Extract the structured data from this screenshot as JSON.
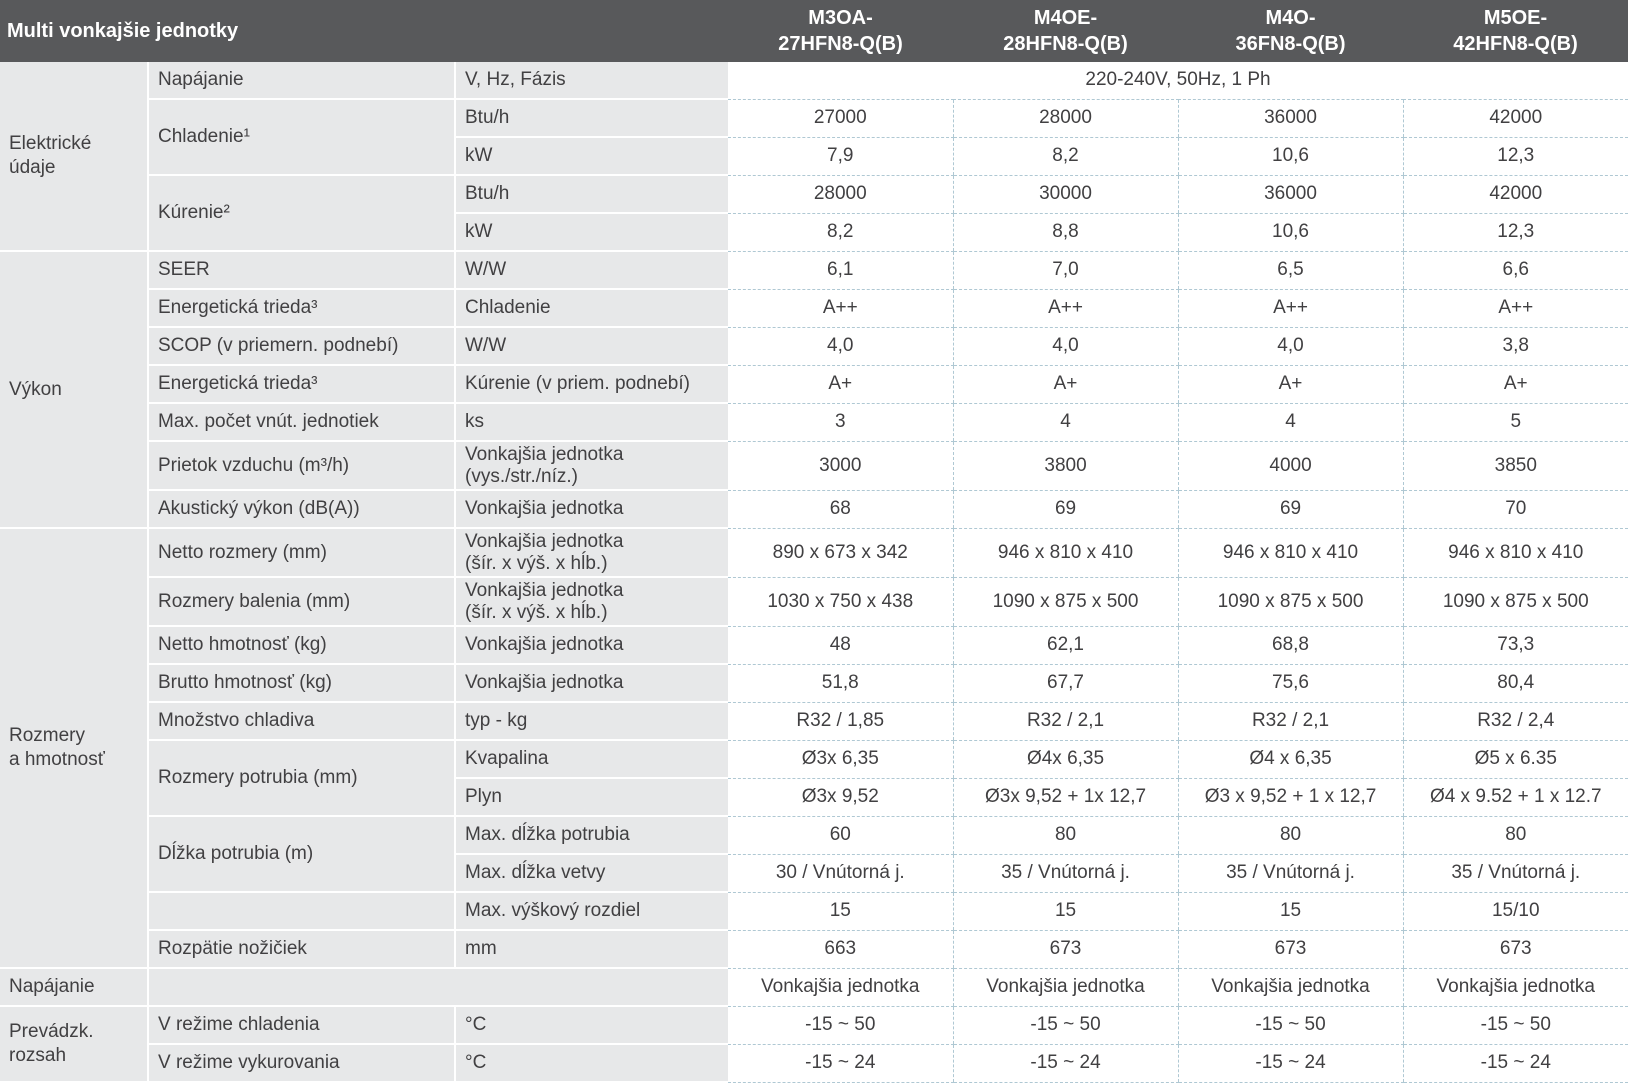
{
  "title": "Multi vonkajšie jednotky",
  "models": [
    "M3OA-\n27HFN8-Q(B)",
    "M4OE-\n28HFN8-Q(B)",
    "M4O-\n36FN8-Q(B)",
    "M5OE-\n42HFN8-Q(B)"
  ],
  "rows": [
    {
      "category": {
        "text": "Elektrické\núdaje",
        "rowspan": 5
      },
      "label": {
        "text": "Napájanie",
        "rowspan": 1
      },
      "unit": "V, Hz, Fázis",
      "span_value": "220-240V, 50Hz, 1 Ph"
    },
    {
      "label": {
        "text": "Chladenie¹",
        "rowspan": 2
      },
      "unit": "Btu/h",
      "values": [
        "27000",
        "28000",
        "36000",
        "42000"
      ]
    },
    {
      "unit": "kW",
      "values": [
        "7,9",
        "8,2",
        "10,6",
        "12,3"
      ]
    },
    {
      "label": {
        "text": "Kúrenie²",
        "rowspan": 2
      },
      "unit": "Btu/h",
      "values": [
        "28000",
        "30000",
        "36000",
        "42000"
      ]
    },
    {
      "unit": "kW",
      "values": [
        "8,2",
        "8,8",
        "10,6",
        "12,3"
      ]
    },
    {
      "category": {
        "text": "Výkon",
        "rowspan": 7
      },
      "label": {
        "text": "SEER",
        "rowspan": 1
      },
      "unit": "W/W",
      "values": [
        "6,1",
        "7,0",
        "6,5",
        "6,6"
      ]
    },
    {
      "label": {
        "text": "Energetická trieda³",
        "rowspan": 1
      },
      "unit": "Chladenie",
      "values": [
        "A++",
        "A++",
        "A++",
        "A++"
      ]
    },
    {
      "label": {
        "text": "SCOP (v priemern. podnebí)",
        "rowspan": 1
      },
      "unit": "W/W",
      "values": [
        "4,0",
        "4,0",
        "4,0",
        "3,8"
      ]
    },
    {
      "label": {
        "text": "Energetická trieda³",
        "rowspan": 1
      },
      "unit": "Kúrenie (v priem. podnebí)",
      "values": [
        "A+",
        "A+",
        "A+",
        "A+"
      ]
    },
    {
      "label": {
        "text": "Max. počet vnút. jednotiek",
        "rowspan": 1
      },
      "unit": "ks",
      "values": [
        "3",
        "4",
        "4",
        "5"
      ]
    },
    {
      "label": {
        "text": "Prietok vzduchu (m³/h)",
        "rowspan": 1
      },
      "unit": "Vonkajšia jednotka\n(vys./str./níz.)",
      "values": [
        "3000",
        "3800",
        "4000",
        "3850"
      ],
      "tall": true
    },
    {
      "label": {
        "text": "Akustický výkon (dB(A))",
        "rowspan": 1
      },
      "unit": "Vonkajšia jednotka",
      "values": [
        "68",
        "69",
        "69",
        "70"
      ]
    },
    {
      "category": {
        "text": "Rozmery\na hmotnosť",
        "rowspan": 11
      },
      "label": {
        "text": "Netto rozmery (mm)",
        "rowspan": 1
      },
      "unit": "Vonkajšia jednotka\n(šír. x výš. x hĺb.)",
      "values": [
        "890 x 673 x 342",
        "946 x 810 x 410",
        "946 x 810 x 410",
        "946 x 810 x 410"
      ],
      "tall": true
    },
    {
      "label": {
        "text": "Rozmery balenia (mm)",
        "rowspan": 1
      },
      "unit": "Vonkajšia jednotka\n(šír. x výš. x hĺb.)",
      "values": [
        "1030 x 750 x 438",
        "1090 x 875 x 500",
        "1090 x 875 x 500",
        "1090 x 875 x 500"
      ],
      "tall": true
    },
    {
      "label": {
        "text": "Netto hmotnosť (kg)",
        "rowspan": 1
      },
      "unit": "Vonkajšia jednotka",
      "values": [
        "48",
        "62,1",
        "68,8",
        "73,3"
      ]
    },
    {
      "label": {
        "text": "Brutto hmotnosť (kg)",
        "rowspan": 1
      },
      "unit": "Vonkajšia jednotka",
      "values": [
        "51,8",
        "67,7",
        "75,6",
        "80,4"
      ]
    },
    {
      "label": {
        "text": "Množstvo chladiva",
        "rowspan": 1
      },
      "unit": "typ - kg",
      "values": [
        "R32 / 1,85",
        "R32 / 2,1",
        "R32 / 2,1",
        "R32 / 2,4"
      ]
    },
    {
      "label": {
        "text": "Rozmery potrubia (mm)",
        "rowspan": 2
      },
      "unit": "Kvapalina",
      "values": [
        "Ø3x 6,35",
        "Ø4x 6,35",
        "Ø4 x 6,35",
        "Ø5 x 6.35"
      ]
    },
    {
      "unit": "Plyn",
      "values": [
        "Ø3x 9,52",
        "Ø3x 9,52 + 1x 12,7",
        "Ø3 x 9,52 + 1 x 12,7",
        "Ø4 x 9.52 + 1 x 12.7"
      ]
    },
    {
      "label": {
        "text": "Dĺžka potrubia (m)",
        "rowspan": 2
      },
      "unit": "Max. dĺžka potrubia",
      "values": [
        "60",
        "80",
        "80",
        "80"
      ]
    },
    {
      "unit": "Max. dĺžka vetvy",
      "values": [
        "30 / Vnútorná j.",
        "35 / Vnútorná j.",
        "35 / Vnútorná j.",
        "35 / Vnútorná j."
      ]
    },
    {
      "label": {
        "text": "",
        "rowspan": 1
      },
      "unit": "Max. výškový rozdiel",
      "values": [
        "15",
        "15",
        "15",
        "15/10"
      ]
    },
    {
      "label": {
        "text": "Rozpätie nožičiek",
        "rowspan": 1
      },
      "unit": "mm",
      "values": [
        "663",
        "673",
        "673",
        "673"
      ]
    },
    {
      "category": {
        "text": "Napájanie",
        "rowspan": 1
      },
      "label": {
        "text": "",
        "colspan": 2
      },
      "values": [
        "Vonkajšia jednotka",
        "Vonkajšia jednotka",
        "Vonkajšia jednotka",
        "Vonkajšia jednotka"
      ]
    },
    {
      "category": {
        "text": "Prevádzk.\nrozsah",
        "rowspan": 2
      },
      "label": {
        "text": "V režime chladenia",
        "rowspan": 1
      },
      "unit": "°C",
      "values": [
        "-15 ~ 50",
        "-15 ~ 50",
        "-15 ~ 50",
        "-15 ~ 50"
      ]
    },
    {
      "label": {
        "text": "V režime vykurovania",
        "rowspan": 1
      },
      "unit": "°C",
      "values": [
        "-15 ~ 24",
        "-15 ~ 24",
        "-15 ~ 24",
        "-15 ~ 24"
      ]
    }
  ]
}
